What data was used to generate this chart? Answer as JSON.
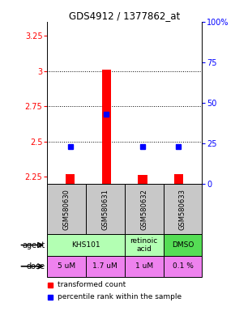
{
  "title": "GDS4912 / 1377862_at",
  "samples": [
    "GSM580630",
    "GSM580631",
    "GSM580632",
    "GSM580633"
  ],
  "red_values": [
    2.27,
    3.01,
    2.265,
    2.27
  ],
  "blue_values": [
    2.465,
    2.695,
    2.465,
    2.465
  ],
  "ylim": [
    2.2,
    3.35
  ],
  "yticks_left": [
    2.25,
    2.5,
    2.75,
    3.0,
    3.25
  ],
  "yticks_left_labels": [
    "2.25",
    "2.5",
    "2.75",
    "3",
    "3.25"
  ],
  "gridlines": [
    2.5,
    2.75,
    3.0
  ],
  "right_tick_positions": [
    2.2,
    2.4875,
    2.775,
    3.0625,
    3.35
  ],
  "right_tick_labels": [
    "0",
    "25",
    "50",
    "75",
    "100%"
  ],
  "agent_info": [
    {
      "col": 0,
      "span": 2,
      "text": "KHS101",
      "color": "#b3ffb3"
    },
    {
      "col": 2,
      "span": 1,
      "text": "retinoic\nacid",
      "color": "#b3ffb3"
    },
    {
      "col": 3,
      "span": 1,
      "text": "DMSO",
      "color": "#55dd55"
    }
  ],
  "dose_labels": [
    "5 uM",
    "1.7 uM",
    "1 uM",
    "0.1 %"
  ],
  "dose_color": "#ee82ee",
  "sample_bg_color": "#c8c8c8",
  "legend_red_label": "transformed count",
  "legend_blue_label": "percentile rank within the sample",
  "bar_width": 0.25
}
